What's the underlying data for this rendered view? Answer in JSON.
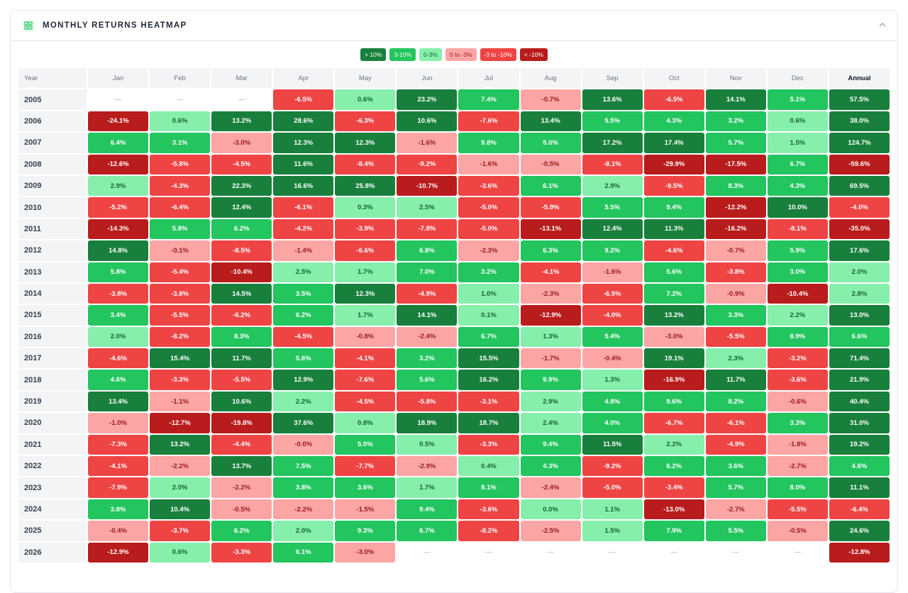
{
  "header": {
    "title": "MONTHLY RETURNS HEATMAP"
  },
  "legend": [
    {
      "label": "> 10%",
      "color": "#18803c",
      "text": "#ffffff"
    },
    {
      "label": "3-10%",
      "color": "#22c55e",
      "text": "#ffffff"
    },
    {
      "label": "0-3%",
      "color": "#86efac",
      "text": "#166534"
    },
    {
      "label": "0 to -3%",
      "color": "#fca5a5",
      "text": "#991b1b"
    },
    {
      "label": "-3 to -10%",
      "color": "#ef4444",
      "text": "#ffffff"
    },
    {
      "label": "< -10%",
      "color": "#b91c1c",
      "text": "#ffffff"
    }
  ],
  "table": {
    "columns": [
      "Year",
      "Jan",
      "Feb",
      "Mar",
      "Apr",
      "May",
      "Jun",
      "Jul",
      "Aug",
      "Sep",
      "Oct",
      "Nov",
      "Dec",
      "Annual"
    ],
    "rows": [
      {
        "year": "2005",
        "cells": [
          "—",
          "—",
          "—",
          "-6.5%",
          "0.6%",
          "23.2%",
          "7.4%",
          "-0.7%",
          "13.6%",
          "-6.5%",
          "14.1%",
          "5.1%",
          "57.5%"
        ]
      },
      {
        "year": "2006",
        "cells": [
          "-24.1%",
          "0.6%",
          "13.2%",
          "28.6%",
          "-6.3%",
          "10.6%",
          "-7.6%",
          "13.4%",
          "5.5%",
          "4.3%",
          "3.2%",
          "0.6%",
          "38.0%"
        ]
      },
      {
        "year": "2007",
        "cells": [
          "6.4%",
          "3.1%",
          "-3.0%",
          "12.3%",
          "12.3%",
          "-1.6%",
          "9.8%",
          "5.0%",
          "17.2%",
          "17.4%",
          "5.7%",
          "1.5%",
          "124.7%"
        ]
      },
      {
        "year": "2008",
        "cells": [
          "-12.6%",
          "-5.8%",
          "-4.5%",
          "11.6%",
          "-8.4%",
          "-9.2%",
          "-1.6%",
          "-0.5%",
          "-8.1%",
          "-29.9%",
          "-17.5%",
          "6.7%",
          "-59.6%"
        ]
      },
      {
        "year": "2009",
        "cells": [
          "2.9%",
          "-4.3%",
          "22.3%",
          "16.6%",
          "25.8%",
          "-10.7%",
          "-3.6%",
          "6.1%",
          "2.9%",
          "-9.5%",
          "8.3%",
          "4.3%",
          "69.5%"
        ]
      },
      {
        "year": "2010",
        "cells": [
          "-5.2%",
          "-6.4%",
          "12.4%",
          "-6.1%",
          "0.3%",
          "2.5%",
          "-5.0%",
          "-5.9%",
          "5.5%",
          "9.4%",
          "-12.2%",
          "10.0%",
          "-4.0%"
        ]
      },
      {
        "year": "2011",
        "cells": [
          "-14.3%",
          "5.8%",
          "6.2%",
          "-4.2%",
          "-3.9%",
          "-7.8%",
          "-5.0%",
          "-13.1%",
          "12.4%",
          "11.3%",
          "-16.2%",
          "-8.1%",
          "-35.0%"
        ]
      },
      {
        "year": "2012",
        "cells": [
          "14.8%",
          "-0.1%",
          "-8.5%",
          "-1.4%",
          "-6.6%",
          "6.8%",
          "-2.3%",
          "6.3%",
          "9.2%",
          "-4.6%",
          "-0.7%",
          "5.9%",
          "17.6%"
        ]
      },
      {
        "year": "2013",
        "cells": [
          "5.8%",
          "-5.4%",
          "-10.4%",
          "2.5%",
          "1.7%",
          "7.0%",
          "3.2%",
          "-4.1%",
          "-1.6%",
          "5.6%",
          "-3.8%",
          "3.0%",
          "2.0%"
        ]
      },
      {
        "year": "2014",
        "cells": [
          "-3.8%",
          "-3.8%",
          "14.5%",
          "3.5%",
          "12.3%",
          "-4.9%",
          "1.0%",
          "-2.3%",
          "-6.5%",
          "7.2%",
          "-0.9%",
          "-10.4%",
          "2.8%"
        ]
      },
      {
        "year": "2015",
        "cells": [
          "3.4%",
          "-5.5%",
          "-6.2%",
          "6.2%",
          "1.7%",
          "14.1%",
          "0.1%",
          "-12.9%",
          "-4.0%",
          "13.2%",
          "3.3%",
          "2.2%",
          "13.0%"
        ]
      },
      {
        "year": "2016",
        "cells": [
          "2.0%",
          "-8.2%",
          "8.3%",
          "-4.5%",
          "-0.8%",
          "-2.4%",
          "6.7%",
          "1.3%",
          "5.4%",
          "-3.0%",
          "-5.5%",
          "8.9%",
          "6.6%"
        ]
      },
      {
        "year": "2017",
        "cells": [
          "-4.6%",
          "15.4%",
          "11.7%",
          "5.6%",
          "-4.1%",
          "3.2%",
          "15.5%",
          "-1.7%",
          "-0.4%",
          "19.1%",
          "2.3%",
          "-3.2%",
          "71.4%"
        ]
      },
      {
        "year": "2018",
        "cells": [
          "4.6%",
          "-3.3%",
          "-5.5%",
          "12.9%",
          "-7.6%",
          "5.6%",
          "16.2%",
          "9.9%",
          "1.3%",
          "-16.9%",
          "11.7%",
          "-3.6%",
          "21.9%"
        ]
      },
      {
        "year": "2019",
        "cells": [
          "13.4%",
          "-1.1%",
          "10.6%",
          "2.2%",
          "-4.5%",
          "-5.8%",
          "-3.1%",
          "2.9%",
          "4.8%",
          "9.6%",
          "8.2%",
          "-0.6%",
          "40.4%"
        ]
      },
      {
        "year": "2020",
        "cells": [
          "-1.0%",
          "-12.7%",
          "-19.8%",
          "37.6%",
          "0.8%",
          "18.9%",
          "18.7%",
          "2.4%",
          "4.0%",
          "-6.7%",
          "-6.1%",
          "3.3%",
          "31.0%"
        ]
      },
      {
        "year": "2021",
        "cells": [
          "-7.3%",
          "13.2%",
          "-4.4%",
          "-0.0%",
          "5.0%",
          "0.5%",
          "-3.3%",
          "9.4%",
          "11.5%",
          "2.2%",
          "-4.9%",
          "-1.8%",
          "19.2%"
        ]
      },
      {
        "year": "2022",
        "cells": [
          "-4.1%",
          "-2.2%",
          "13.7%",
          "7.5%",
          "-7.7%",
          "-2.9%",
          "0.4%",
          "4.3%",
          "-9.2%",
          "6.2%",
          "3.6%",
          "-2.7%",
          "4.6%"
        ]
      },
      {
        "year": "2023",
        "cells": [
          "-7.9%",
          "2.0%",
          "-2.2%",
          "3.8%",
          "3.6%",
          "1.7%",
          "8.1%",
          "-2.4%",
          "-5.0%",
          "-3.4%",
          "5.7%",
          "8.0%",
          "11.1%"
        ]
      },
      {
        "year": "2024",
        "cells": [
          "3.8%",
          "10.4%",
          "-0.5%",
          "-2.2%",
          "-1.5%",
          "9.4%",
          "-3.6%",
          "0.0%",
          "1.1%",
          "-13.0%",
          "-2.7%",
          "-5.5%",
          "-6.4%"
        ]
      },
      {
        "year": "2025",
        "cells": [
          "-0.4%",
          "-3.7%",
          "6.2%",
          "2.0%",
          "9.3%",
          "6.7%",
          "-8.2%",
          "-2.5%",
          "1.5%",
          "7.9%",
          "5.5%",
          "-0.5%",
          "24.6%"
        ]
      },
      {
        "year": "2026",
        "cells": [
          "-12.9%",
          "0.6%",
          "-3.3%",
          "6.1%",
          "-3.0%",
          "—",
          "—",
          "—",
          "—",
          "—",
          "—",
          "—",
          "-12.8%"
        ]
      }
    ]
  }
}
